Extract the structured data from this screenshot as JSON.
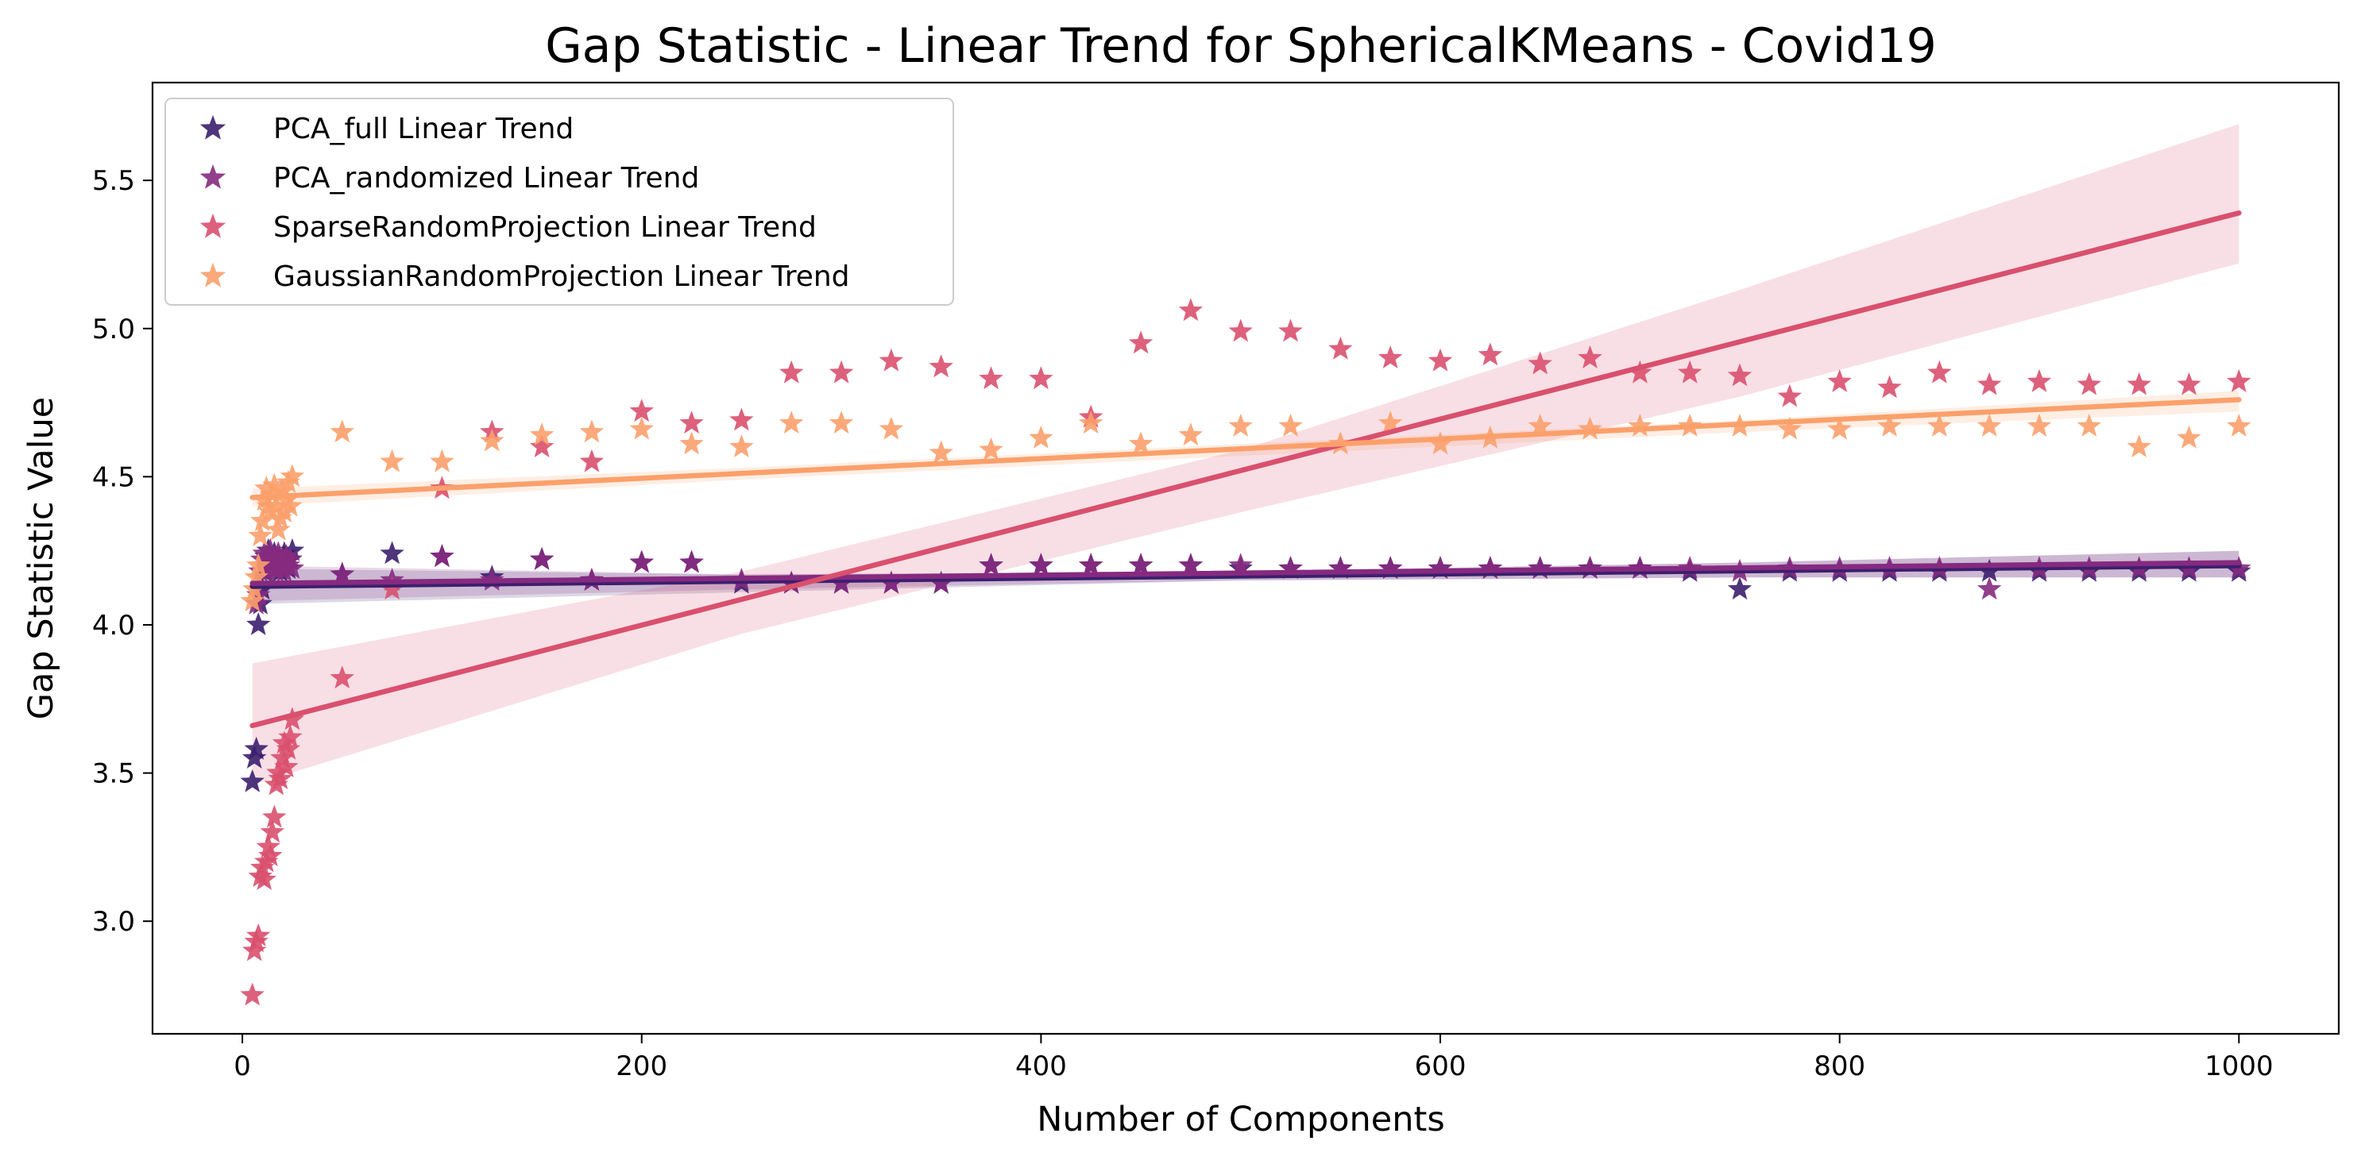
{
  "chart_data": {
    "type": "scatter",
    "title": "Gap Statistic - Linear Trend for SphericalKMeans - Covid19",
    "xlabel": "Number of Components",
    "ylabel": "Gap Statistic Value",
    "xlim": [
      -45,
      1050
    ],
    "ylim": [
      2.62,
      5.83
    ],
    "xticks": [
      0,
      200,
      400,
      600,
      800,
      1000
    ],
    "yticks": [
      3.0,
      3.5,
      4.0,
      4.5,
      5.0,
      5.5
    ],
    "xtick_labels": [
      "0",
      "200",
      "400",
      "600",
      "800",
      "1000"
    ],
    "ytick_labels": [
      "3.0",
      "3.5",
      "4.0",
      "4.5",
      "5.0",
      "5.5"
    ],
    "grid": false,
    "legend_position": "upper-left",
    "marker": "star",
    "series": [
      {
        "name": "PCA_full Linear Trend",
        "color": "#3b1f6e",
        "points": [
          [
            5,
            3.47
          ],
          [
            6,
            3.55
          ],
          [
            7,
            3.58
          ],
          [
            8,
            4.0
          ],
          [
            9,
            4.07
          ],
          [
            10,
            4.12
          ],
          [
            11,
            4.18
          ],
          [
            12,
            4.23
          ],
          [
            13,
            4.25
          ],
          [
            14,
            4.22
          ],
          [
            15,
            4.2
          ],
          [
            16,
            4.24
          ],
          [
            17,
            4.19
          ],
          [
            18,
            4.22
          ],
          [
            19,
            4.18
          ],
          [
            20,
            4.2
          ],
          [
            21,
            4.24
          ],
          [
            22,
            4.21
          ],
          [
            23,
            4.19
          ],
          [
            24,
            4.22
          ],
          [
            25,
            4.25
          ],
          [
            50,
            4.17
          ],
          [
            75,
            4.24
          ],
          [
            100,
            4.23
          ],
          [
            125,
            4.16
          ],
          [
            150,
            4.22
          ],
          [
            175,
            4.15
          ],
          [
            200,
            4.21
          ],
          [
            225,
            4.21
          ],
          [
            250,
            4.14
          ],
          [
            275,
            4.14
          ],
          [
            300,
            4.14
          ],
          [
            325,
            4.14
          ],
          [
            350,
            4.14
          ],
          [
            375,
            4.2
          ],
          [
            400,
            4.2
          ],
          [
            425,
            4.2
          ],
          [
            450,
            4.2
          ],
          [
            475,
            4.2
          ],
          [
            500,
            4.19
          ],
          [
            525,
            4.19
          ],
          [
            550,
            4.19
          ],
          [
            575,
            4.19
          ],
          [
            600,
            4.19
          ],
          [
            625,
            4.19
          ],
          [
            650,
            4.19
          ],
          [
            675,
            4.19
          ],
          [
            700,
            4.19
          ],
          [
            725,
            4.18
          ],
          [
            750,
            4.12
          ],
          [
            775,
            4.18
          ],
          [
            800,
            4.18
          ],
          [
            825,
            4.18
          ],
          [
            850,
            4.18
          ],
          [
            875,
            4.18
          ],
          [
            900,
            4.18
          ],
          [
            925,
            4.18
          ],
          [
            950,
            4.18
          ],
          [
            975,
            4.18
          ],
          [
            1000,
            4.18
          ]
        ],
        "trend": {
          "x": [
            5,
            1000
          ],
          "y": [
            4.13,
            4.2
          ]
        },
        "band": {
          "x": [
            5,
            250,
            500,
            750,
            1000
          ],
          "lower": [
            4.07,
            4.11,
            4.15,
            4.16,
            4.16
          ],
          "upper": [
            4.19,
            4.17,
            4.18,
            4.21,
            4.25
          ]
        }
      },
      {
        "name": "PCA_randomized Linear Trend",
        "color": "#862a80",
        "points": [
          [
            7,
            4.07
          ],
          [
            8,
            4.1
          ],
          [
            9,
            4.18
          ],
          [
            10,
            4.22
          ],
          [
            11,
            4.24
          ],
          [
            12,
            4.18
          ],
          [
            13,
            4.22
          ],
          [
            14,
            4.25
          ],
          [
            15,
            4.2
          ],
          [
            16,
            4.22
          ],
          [
            17,
            4.18
          ],
          [
            18,
            4.24
          ],
          [
            19,
            4.2
          ],
          [
            20,
            4.22
          ],
          [
            21,
            4.18
          ],
          [
            22,
            4.23
          ],
          [
            23,
            4.2
          ],
          [
            24,
            4.22
          ],
          [
            25,
            4.19
          ],
          [
            50,
            4.17
          ],
          [
            75,
            4.15
          ],
          [
            100,
            4.23
          ],
          [
            125,
            4.15
          ],
          [
            150,
            4.22
          ],
          [
            175,
            4.15
          ],
          [
            200,
            4.21
          ],
          [
            225,
            4.21
          ],
          [
            250,
            4.15
          ],
          [
            275,
            4.14
          ],
          [
            300,
            4.14
          ],
          [
            325,
            4.14
          ],
          [
            350,
            4.14
          ],
          [
            375,
            4.2
          ],
          [
            400,
            4.2
          ],
          [
            425,
            4.2
          ],
          [
            450,
            4.2
          ],
          [
            475,
            4.2
          ],
          [
            500,
            4.2
          ],
          [
            525,
            4.19
          ],
          [
            550,
            4.19
          ],
          [
            575,
            4.19
          ],
          [
            600,
            4.19
          ],
          [
            625,
            4.19
          ],
          [
            650,
            4.19
          ],
          [
            675,
            4.19
          ],
          [
            700,
            4.19
          ],
          [
            725,
            4.19
          ],
          [
            750,
            4.18
          ],
          [
            775,
            4.19
          ],
          [
            800,
            4.19
          ],
          [
            825,
            4.19
          ],
          [
            850,
            4.19
          ],
          [
            875,
            4.12
          ],
          [
            900,
            4.19
          ],
          [
            925,
            4.19
          ],
          [
            950,
            4.19
          ],
          [
            975,
            4.19
          ],
          [
            1000,
            4.19
          ]
        ],
        "trend": {
          "x": [
            5,
            1000
          ],
          "y": [
            4.14,
            4.21
          ]
        },
        "band": {
          "x": [
            5,
            250,
            500,
            750,
            1000
          ],
          "lower": [
            4.08,
            4.12,
            4.15,
            4.16,
            4.16
          ],
          "upper": [
            4.2,
            4.17,
            4.18,
            4.21,
            4.25
          ]
        }
      },
      {
        "name": "SparseRandomProjection Linear Trend",
        "color": "#d9506e",
        "points": [
          [
            5,
            2.75
          ],
          [
            6,
            2.9
          ],
          [
            7,
            2.93
          ],
          [
            8,
            2.95
          ],
          [
            9,
            3.15
          ],
          [
            10,
            3.18
          ],
          [
            11,
            3.14
          ],
          [
            12,
            3.2
          ],
          [
            13,
            3.25
          ],
          [
            14,
            3.22
          ],
          [
            15,
            3.3
          ],
          [
            16,
            3.35
          ],
          [
            17,
            3.46
          ],
          [
            18,
            3.5
          ],
          [
            19,
            3.48
          ],
          [
            20,
            3.55
          ],
          [
            21,
            3.6
          ],
          [
            22,
            3.52
          ],
          [
            23,
            3.58
          ],
          [
            24,
            3.62
          ],
          [
            25,
            3.68
          ],
          [
            50,
            3.82
          ],
          [
            75,
            4.12
          ],
          [
            100,
            4.46
          ],
          [
            125,
            4.65
          ],
          [
            150,
            4.6
          ],
          [
            175,
            4.55
          ],
          [
            200,
            4.72
          ],
          [
            225,
            4.68
          ],
          [
            250,
            4.69
          ],
          [
            275,
            4.85
          ],
          [
            300,
            4.85
          ],
          [
            325,
            4.89
          ],
          [
            350,
            4.87
          ],
          [
            375,
            4.83
          ],
          [
            400,
            4.83
          ],
          [
            425,
            4.7
          ],
          [
            450,
            4.95
          ],
          [
            475,
            5.06
          ],
          [
            500,
            4.99
          ],
          [
            525,
            4.99
          ],
          [
            550,
            4.93
          ],
          [
            575,
            4.9
          ],
          [
            600,
            4.89
          ],
          [
            625,
            4.91
          ],
          [
            650,
            4.88
          ],
          [
            675,
            4.9
          ],
          [
            700,
            4.85
          ],
          [
            725,
            4.85
          ],
          [
            750,
            4.84
          ],
          [
            775,
            4.77
          ],
          [
            800,
            4.82
          ],
          [
            825,
            4.8
          ],
          [
            850,
            4.85
          ],
          [
            875,
            4.81
          ],
          [
            900,
            4.82
          ],
          [
            925,
            4.81
          ],
          [
            950,
            4.81
          ],
          [
            975,
            4.81
          ],
          [
            1000,
            4.82
          ]
        ],
        "trend": {
          "x": [
            5,
            1000
          ],
          "y": [
            3.66,
            5.39
          ]
        },
        "band": {
          "x": [
            5,
            250,
            500,
            750,
            1000
          ],
          "lower": [
            3.46,
            3.97,
            4.38,
            4.77,
            5.22
          ],
          "upper": [
            3.87,
            4.18,
            4.59,
            5.13,
            5.69
          ]
        }
      },
      {
        "name": "GaussianRandomProjection Linear Trend",
        "color": "#fba06b",
        "points": [
          [
            5,
            4.08
          ],
          [
            6,
            4.12
          ],
          [
            7,
            4.16
          ],
          [
            8,
            4.2
          ],
          [
            9,
            4.3
          ],
          [
            10,
            4.35
          ],
          [
            11,
            4.42
          ],
          [
            12,
            4.46
          ],
          [
            13,
            4.4
          ],
          [
            14,
            4.38
          ],
          [
            15,
            4.44
          ],
          [
            16,
            4.47
          ],
          [
            17,
            4.4
          ],
          [
            18,
            4.32
          ],
          [
            19,
            4.36
          ],
          [
            20,
            4.45
          ],
          [
            21,
            4.38
          ],
          [
            22,
            4.42
          ],
          [
            23,
            4.48
          ],
          [
            24,
            4.4
          ],
          [
            25,
            4.5
          ],
          [
            50,
            4.65
          ],
          [
            75,
            4.55
          ],
          [
            100,
            4.55
          ],
          [
            125,
            4.62
          ],
          [
            150,
            4.64
          ],
          [
            175,
            4.65
          ],
          [
            200,
            4.66
          ],
          [
            225,
            4.61
          ],
          [
            250,
            4.6
          ],
          [
            275,
            4.68
          ],
          [
            300,
            4.68
          ],
          [
            325,
            4.66
          ],
          [
            350,
            4.58
          ],
          [
            375,
            4.59
          ],
          [
            400,
            4.63
          ],
          [
            425,
            4.68
          ],
          [
            450,
            4.61
          ],
          [
            475,
            4.64
          ],
          [
            500,
            4.67
          ],
          [
            525,
            4.67
          ],
          [
            550,
            4.61
          ],
          [
            575,
            4.68
          ],
          [
            600,
            4.61
          ],
          [
            625,
            4.63
          ],
          [
            650,
            4.67
          ],
          [
            675,
            4.66
          ],
          [
            700,
            4.67
          ],
          [
            725,
            4.67
          ],
          [
            750,
            4.67
          ],
          [
            775,
            4.66
          ],
          [
            800,
            4.66
          ],
          [
            825,
            4.67
          ],
          [
            850,
            4.67
          ],
          [
            875,
            4.67
          ],
          [
            900,
            4.67
          ],
          [
            925,
            4.67
          ],
          [
            950,
            4.6
          ],
          [
            975,
            4.63
          ],
          [
            1000,
            4.67
          ]
        ],
        "trend": {
          "x": [
            5,
            1000
          ],
          "y": [
            4.43,
            4.76
          ]
        },
        "band": {
          "x": [
            5,
            250,
            500,
            750,
            1000
          ],
          "lower": [
            4.4,
            4.49,
            4.57,
            4.65,
            4.72
          ],
          "upper": [
            4.46,
            4.53,
            4.61,
            4.69,
            4.79
          ]
        }
      }
    ]
  }
}
